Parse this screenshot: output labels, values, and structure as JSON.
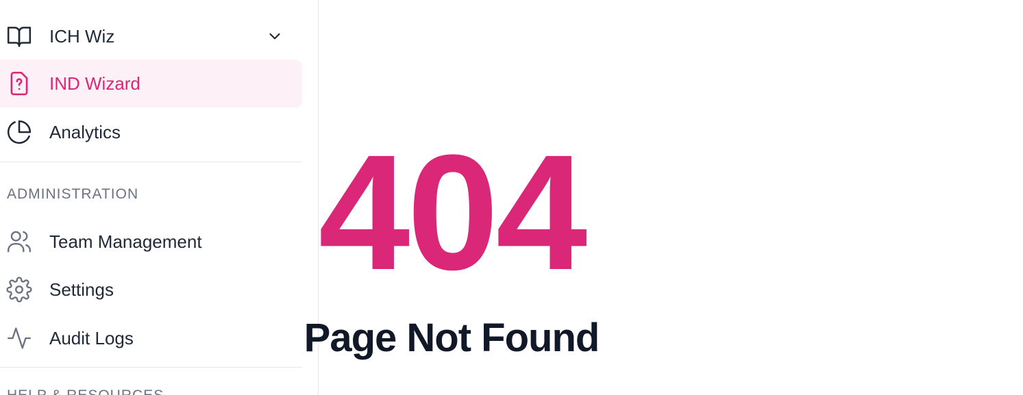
{
  "sidebar": {
    "items": [
      {
        "label": "ICH Wiz",
        "icon": "book-open-icon",
        "has_chevron": true
      },
      {
        "label": "IND Wizard",
        "icon": "file-question-icon",
        "active": true
      },
      {
        "label": "Analytics",
        "icon": "pie-chart-icon"
      }
    ],
    "admin": {
      "title": "ADMINISTRATION",
      "items": [
        {
          "label": "Team Management",
          "icon": "users-icon"
        },
        {
          "label": "Settings",
          "icon": "gear-icon"
        },
        {
          "label": "Audit Logs",
          "icon": "activity-icon"
        }
      ]
    },
    "next_section_title": "HELP & RESOURCES"
  },
  "main": {
    "error_code": "404",
    "error_title": "Page Not Found"
  },
  "colors": {
    "accent": "#db2777",
    "active_bg": "#fdf0f6",
    "text": "#1f2937",
    "muted": "#6b7280",
    "heading": "#111827"
  }
}
